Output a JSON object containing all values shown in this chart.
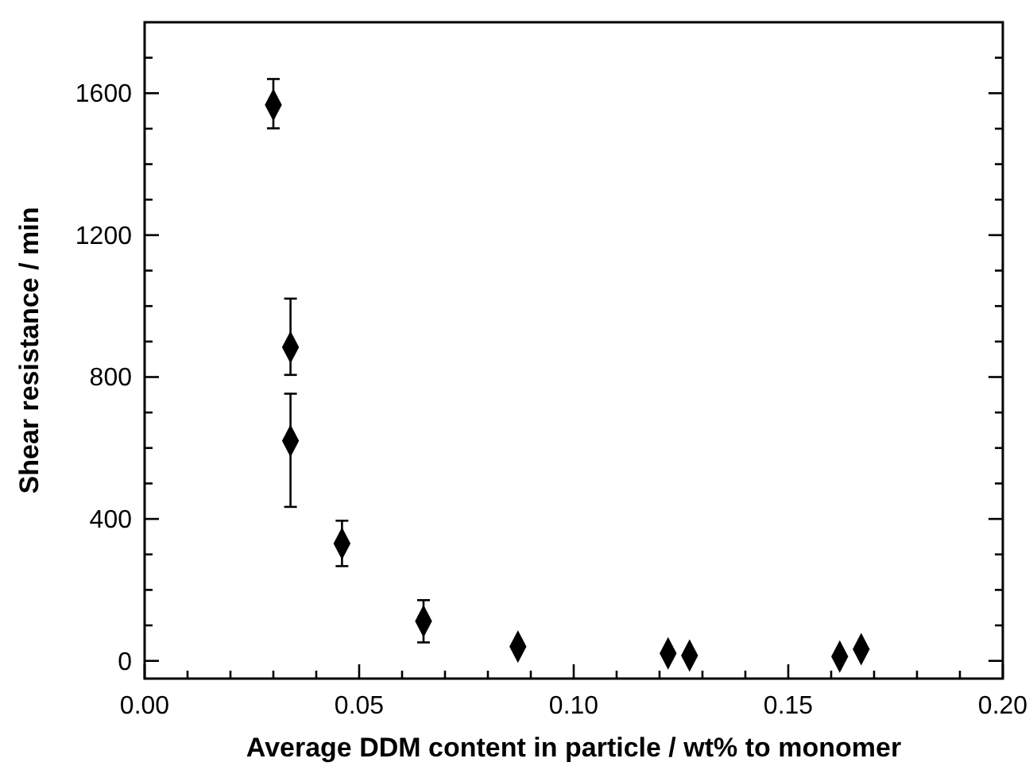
{
  "chart_data": {
    "type": "scatter",
    "xlabel": "Average DDM content in particle / wt% to monomer",
    "ylabel": "Shear resistance / min",
    "xlim": [
      0,
      0.2
    ],
    "ylim": [
      -50,
      1800
    ],
    "xticks": [
      {
        "value": 0,
        "label": "0.00"
      },
      {
        "value": 0.01,
        "label": null
      },
      {
        "value": 0.02,
        "label": null
      },
      {
        "value": 0.03,
        "label": null
      },
      {
        "value": 0.04,
        "label": null
      },
      {
        "value": 0.05,
        "label": "0.05"
      },
      {
        "value": 0.06,
        "label": null
      },
      {
        "value": 0.07,
        "label": null
      },
      {
        "value": 0.08,
        "label": null
      },
      {
        "value": 0.09,
        "label": null
      },
      {
        "value": 0.1,
        "label": "0.10"
      },
      {
        "value": 0.11,
        "label": null
      },
      {
        "value": 0.12,
        "label": null
      },
      {
        "value": 0.13,
        "label": null
      },
      {
        "value": 0.14,
        "label": null
      },
      {
        "value": 0.15,
        "label": "0.15"
      },
      {
        "value": 0.16,
        "label": null
      },
      {
        "value": 0.17,
        "label": null
      },
      {
        "value": 0.18,
        "label": null
      },
      {
        "value": 0.19,
        "label": null
      },
      {
        "value": 0.2,
        "label": "0.20"
      }
    ],
    "yticks": [
      0,
      {
        "value": 100,
        "label": null
      },
      {
        "value": 200,
        "label": null
      },
      {
        "value": 300,
        "label": null
      },
      400,
      {
        "value": 500,
        "label": null
      },
      {
        "value": 600,
        "label": null
      },
      {
        "value": 700,
        "label": null
      },
      800,
      {
        "value": 900,
        "label": null
      },
      {
        "value": 1000,
        "label": null
      },
      {
        "value": 1100,
        "label": null
      },
      1200,
      {
        "value": 1300,
        "label": null
      },
      {
        "value": 1400,
        "label": null
      },
      {
        "value": 1500,
        "label": null
      },
      1600,
      {
        "value": 1700,
        "label": null
      }
    ],
    "marker": "diamond",
    "series": [
      {
        "color": "#000000",
        "x": [
          0.03,
          0.034,
          0.034,
          0.046,
          0.065,
          0.087,
          0.122,
          0.127,
          0.162,
          0.167
        ],
        "values": [
          1567,
          884,
          620,
          331,
          112,
          40,
          21,
          15,
          12,
          33
        ],
        "errors": [
          [
            1501,
            1640
          ],
          [
            806,
            1021
          ],
          [
            434,
            753
          ],
          [
            267,
            395
          ],
          [
            52,
            171
          ],
          null,
          null,
          null,
          null,
          null
        ]
      }
    ]
  }
}
